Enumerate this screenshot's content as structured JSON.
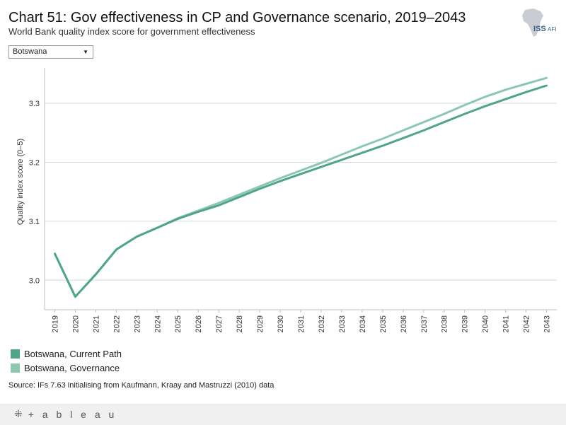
{
  "header": {
    "title": "Chart 51: Gov effectiveness in CP and Governance scenario, 2019–2043",
    "subtitle": "World Bank quality index score for government effectiveness"
  },
  "logo": {
    "text": "ISS",
    "suffix": "AFI",
    "icon": "africa-map-icon"
  },
  "filter": {
    "selected": "Botswana",
    "icon": "chevron-down-icon"
  },
  "chart_data": {
    "type": "line",
    "title": "Chart 51: Gov effectiveness in CP and Governance scenario, 2019–2043",
    "xlabel": "",
    "ylabel": "Quality index score (0–5)",
    "ylim": [
      2.95,
      3.36
    ],
    "yticks": [
      3.0,
      3.1,
      3.2,
      3.3
    ],
    "yticklabels": [
      "3.0",
      "3.1",
      "3.2",
      "3.3"
    ],
    "grid": true,
    "x": [
      "2019",
      "2020",
      "2021",
      "2022",
      "2023",
      "2024",
      "2025",
      "2026",
      "2027",
      "2028",
      "2029",
      "2030",
      "2031",
      "2032",
      "2033",
      "2034",
      "2035",
      "2036",
      "2037",
      "2038",
      "2039",
      "2040",
      "2041",
      "2042",
      "2043"
    ],
    "series": [
      {
        "name": "Botswana, Current Path",
        "color": "#4fa58a",
        "values": [
          3.045,
          2.972,
          3.01,
          3.052,
          3.074,
          3.089,
          3.104,
          3.116,
          3.127,
          3.141,
          3.155,
          3.168,
          3.18,
          3.192,
          3.204,
          3.216,
          3.228,
          3.241,
          3.254,
          3.268,
          3.282,
          3.295,
          3.307,
          3.319,
          3.33
        ]
      },
      {
        "name": "Botswana, Governance",
        "color": "#8cc7b0",
        "values": [
          3.045,
          2.972,
          3.01,
          3.052,
          3.074,
          3.089,
          3.105,
          3.118,
          3.131,
          3.145,
          3.159,
          3.173,
          3.186,
          3.199,
          3.213,
          3.227,
          3.24,
          3.254,
          3.268,
          3.282,
          3.297,
          3.311,
          3.323,
          3.333,
          3.343
        ]
      }
    ],
    "legend_position": "bottom-left"
  },
  "legend": {
    "items": [
      {
        "label": "Botswana, Current Path",
        "color": "#4fa58a"
      },
      {
        "label": "Botswana, Governance",
        "color": "#8cc7b0"
      }
    ]
  },
  "source": "Source: IFs 7.63 initialising from Kaufmann, Kraay and Mastruzzi (2010) data",
  "footer": {
    "brand": "+ a b l e a u",
    "icon": "tableau-icon"
  }
}
